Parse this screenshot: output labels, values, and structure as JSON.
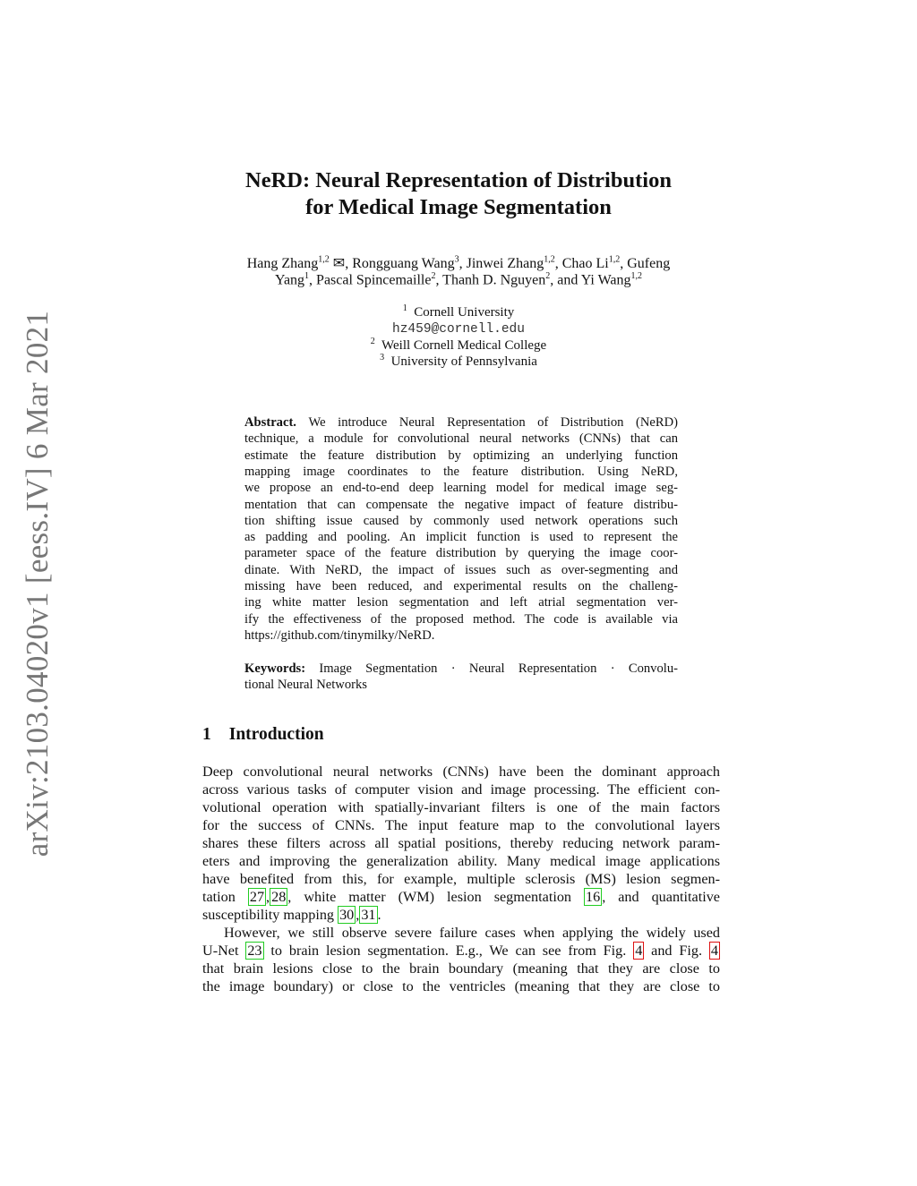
{
  "stamp": "arXiv:2103.04020v1  [eess.IV]  6 Mar 2021",
  "title": [
    "NeRD: Neural Representation of Distribution",
    "for Medical Image Segmentation"
  ],
  "authors": [
    [
      {
        "t": "Hang Zhang"
      },
      {
        "s": "1,2"
      },
      {
        "t": " ✉, Rongguang Wang"
      },
      {
        "s": "3"
      },
      {
        "t": ", Jinwei Zhang"
      },
      {
        "s": "1,2"
      },
      {
        "t": ", Chao Li"
      },
      {
        "s": "1,2"
      },
      {
        "t": ", Gufeng"
      }
    ],
    [
      {
        "t": "Yang"
      },
      {
        "s": "1"
      },
      {
        "t": ", Pascal Spincemaille"
      },
      {
        "s": "2"
      },
      {
        "t": ", Thanh D. Nguyen"
      },
      {
        "s": "2"
      },
      {
        "t": ", and Yi Wang"
      },
      {
        "s": "1,2"
      }
    ]
  ],
  "affiliations": [
    {
      "num": "1",
      "name": "Cornell University"
    },
    {
      "email": "hz459@cornell.edu"
    },
    {
      "num": "2",
      "name": "Weill Cornell Medical College"
    },
    {
      "num": "3",
      "name": "University of Pennsylvania"
    }
  ],
  "abstract": {
    "label": "Abstract.",
    "lines": [
      "We introduce Neural Representation of Distribution (NeRD)",
      "technique, a module for convolutional neural networks (CNNs) that can",
      "estimate the feature distribution by optimizing an underlying function",
      "mapping image coordinates to the feature distribution. Using NeRD,",
      "we propose an end-to-end deep learning model for medical image seg-",
      "mentation that can compensate the negative impact of feature distribu-",
      "tion shifting issue caused by commonly used network operations such",
      "as padding and pooling. An implicit function is used to represent the",
      "parameter space of the feature distribution by querying the image coor-",
      "dinate. With NeRD, the impact of issues such as over-segmenting and",
      "missing have been reduced, and experimental results on the challeng-",
      "ing white matter lesion segmentation and left atrial segmentation ver-",
      "ify the effectiveness of the proposed method. The code is available via",
      "https://github.com/tinymilky/NeRD."
    ]
  },
  "keywords": {
    "label": "Keywords:",
    "lines": [
      "Image Segmentation · Neural Representation · Convolu-",
      "tional Neural Networks"
    ]
  },
  "section": {
    "number": "1",
    "title": "Introduction"
  },
  "body_lines": [
    [
      {
        "t": "Deep convolutional neural networks (CNNs) have been the dominant approach"
      }
    ],
    [
      {
        "t": "across various tasks of computer vision and image processing. The efficient con-"
      }
    ],
    [
      {
        "t": "volutional operation with spatially-invariant filters is one of the main factors"
      }
    ],
    [
      {
        "t": "for the success of CNNs. The input feature map to the convolutional layers"
      }
    ],
    [
      {
        "t": "shares these filters across all spatial positions, thereby reducing network param-"
      }
    ],
    [
      {
        "t": "eters and improving the generalization ability. Many medical image applications"
      }
    ],
    [
      {
        "t": "have benefited from this, for example, multiple sclerosis (MS) lesion segmen-"
      }
    ],
    [
      {
        "t": "tation "
      },
      {
        "c": "27"
      },
      {
        "t": ","
      },
      {
        "c": "28"
      },
      {
        "t": ", white matter (WM) lesion segmentation "
      },
      {
        "c": "16"
      },
      {
        "t": ", and quantitative"
      }
    ],
    [
      {
        "t": "susceptibility mapping "
      },
      {
        "c": "30"
      },
      {
        "t": ","
      },
      {
        "c": "31"
      },
      {
        "t": "."
      }
    ],
    [
      {
        "t": "However, we still observe severe failure cases when applying the widely used"
      }
    ],
    [
      {
        "t": "U-Net "
      },
      {
        "c": "23"
      },
      {
        "t": " to brain lesion segmentation. E.g., We can see from Fig. "
      },
      {
        "f": "4"
      },
      {
        "t": " and Fig. "
      },
      {
        "f": "4"
      }
    ],
    [
      {
        "t": "that brain lesions close to the brain boundary (meaning that they are close to"
      }
    ],
    [
      {
        "t": "the image boundary) or close to the ventricles (meaning that they are close to"
      }
    ]
  ],
  "colors": {
    "citation_box": "#22cc22",
    "figure_ref_box": "#dd1111",
    "stamp": "#777777"
  }
}
